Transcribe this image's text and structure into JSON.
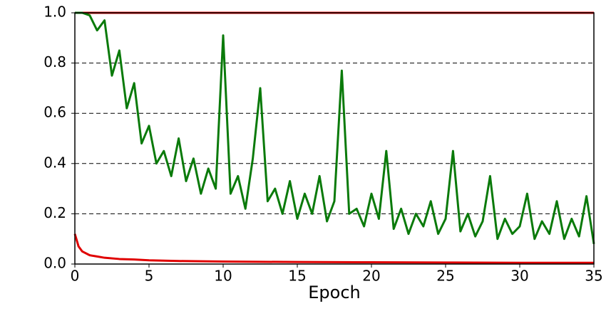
{
  "chart_data": {
    "type": "line",
    "x_label": "Epoch",
    "xlim": [
      0,
      35
    ],
    "ylim": [
      0,
      1
    ],
    "xticks": [
      0,
      5,
      10,
      15,
      20,
      25,
      30,
      35
    ],
    "yticks": [
      {
        "value": 0,
        "label": "0.0"
      },
      {
        "value": 0.2,
        "label": "0.2"
      },
      {
        "value": 0.4,
        "label": "0.4"
      },
      {
        "value": 0.6,
        "label": "0.6"
      },
      {
        "value": 0.8,
        "label": "0.8"
      },
      {
        "value": 1,
        "label": "1.0"
      }
    ],
    "grid": true,
    "series": [
      {
        "color": "#e00000",
        "x": [
          0,
          35
        ],
        "values": [
          1.0,
          1.0
        ]
      },
      {
        "color": "#e00000",
        "x": [
          0,
          0.25,
          0.5,
          1,
          1.5,
          2,
          3,
          4,
          5,
          7,
          10,
          15,
          20,
          25,
          30,
          35
        ],
        "values": [
          0.12,
          0.07,
          0.05,
          0.035,
          0.03,
          0.025,
          0.02,
          0.018,
          0.015,
          0.012,
          0.01,
          0.008,
          0.007,
          0.006,
          0.005,
          0.005
        ]
      },
      {
        "color": "#0a7a0a",
        "x": [
          0,
          0.5,
          1,
          1.5,
          2,
          2.5,
          3,
          3.5,
          4,
          4.5,
          5,
          5.5,
          6,
          6.5,
          7,
          7.5,
          8,
          8.5,
          9,
          9.5,
          10,
          10.5,
          11,
          11.5,
          12,
          12.5,
          13,
          13.5,
          14,
          14.5,
          15,
          15.5,
          16,
          16.5,
          17,
          17.5,
          18,
          18.5,
          19,
          19.5,
          20,
          20.5,
          21,
          21.5,
          22,
          22.5,
          23,
          23.5,
          24,
          24.5,
          25,
          25.5,
          26,
          26.5,
          27,
          27.5,
          28,
          28.5,
          29,
          29.5,
          30,
          30.5,
          31,
          31.5,
          32,
          32.5,
          33,
          33.5,
          34,
          34.5,
          35
        ],
        "values": [
          1.0,
          1.0,
          0.99,
          0.93,
          0.97,
          0.75,
          0.85,
          0.62,
          0.72,
          0.48,
          0.55,
          0.4,
          0.45,
          0.35,
          0.5,
          0.33,
          0.42,
          0.28,
          0.38,
          0.3,
          0.91,
          0.28,
          0.35,
          0.22,
          0.42,
          0.7,
          0.25,
          0.3,
          0.2,
          0.33,
          0.18,
          0.28,
          0.2,
          0.35,
          0.17,
          0.25,
          0.77,
          0.2,
          0.22,
          0.15,
          0.28,
          0.18,
          0.45,
          0.14,
          0.22,
          0.12,
          0.2,
          0.15,
          0.25,
          0.12,
          0.18,
          0.45,
          0.13,
          0.2,
          0.11,
          0.17,
          0.35,
          0.1,
          0.18,
          0.12,
          0.15,
          0.28,
          0.1,
          0.17,
          0.12,
          0.25,
          0.1,
          0.18,
          0.11,
          0.27,
          0.08
        ]
      }
    ]
  }
}
